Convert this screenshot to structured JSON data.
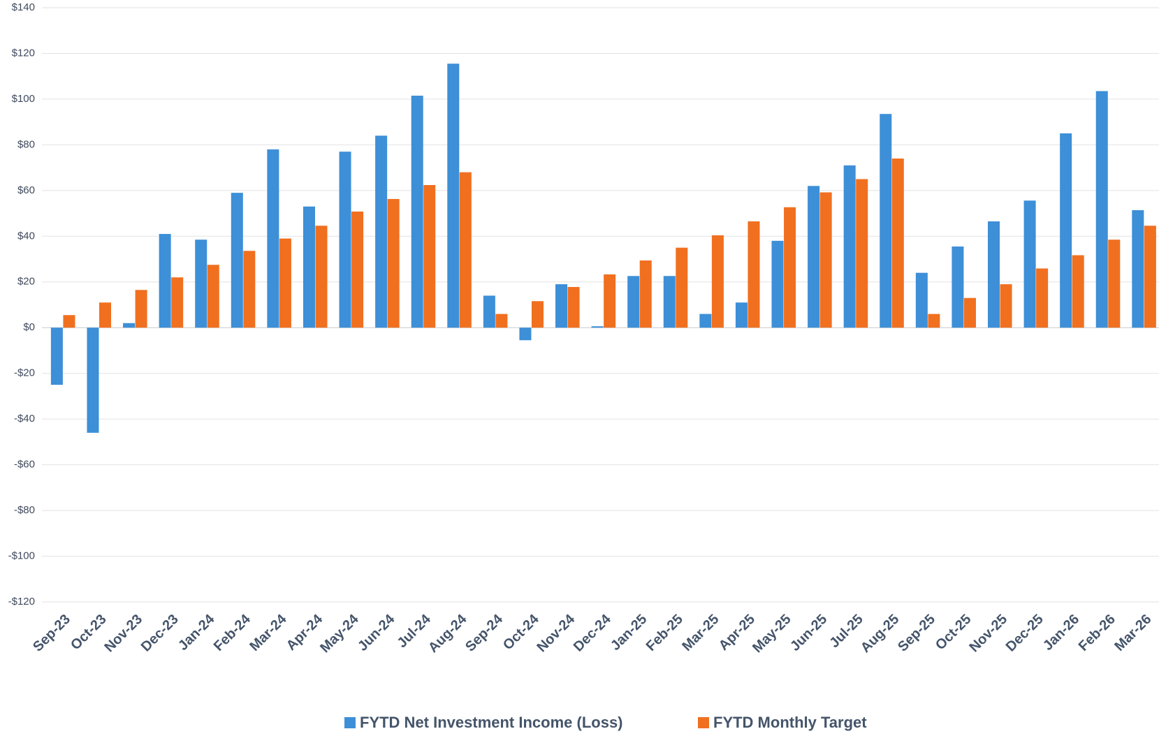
{
  "chart_data": {
    "type": "bar",
    "categories": [
      "Sep-23",
      "Oct-23",
      "Nov-23",
      "Dec-23",
      "Jan-24",
      "Feb-24",
      "Mar-24",
      "Apr-24",
      "May-24",
      "Jun-24",
      "Jul-24",
      "Aug-24",
      "Sep-24",
      "Oct-24",
      "Nov-24",
      "Dec-24",
      "Jan-25",
      "Feb-25",
      "Mar-25",
      "Apr-25",
      "May-25",
      "Jun-25",
      "Jul-25",
      "Aug-25",
      "Sep-25",
      "Oct-25",
      "Nov-25",
      "Dec-25",
      "Jan-26",
      "Feb-26",
      "Mar-26"
    ],
    "series": [
      {
        "name": "FYTD Net Investment Income (Loss)",
        "color": "#3d8fd8",
        "values": [
          -25,
          -46,
          2,
          41,
          38.5,
          59,
          78,
          53,
          77,
          84,
          101.5,
          115.5,
          14,
          -5.5,
          19,
          0.6,
          22.6,
          22.6,
          6,
          11,
          38,
          62,
          71,
          93.5,
          24,
          35.5,
          46.5,
          55.6,
          85,
          103.5,
          51.4
        ]
      },
      {
        "name": "FYTD Monthly Target",
        "color": "#f07020",
        "values": [
          5.5,
          11,
          16.5,
          22,
          27.5,
          33.6,
          39,
          44.6,
          50.8,
          56.3,
          62.4,
          68,
          6,
          11.6,
          17.8,
          23.3,
          29.4,
          35,
          40.4,
          46.5,
          52.7,
          59.2,
          65,
          74,
          6,
          13,
          19,
          25.9,
          31.7,
          38.5,
          44.6
        ]
      }
    ],
    "ylim": [
      -120,
      140
    ],
    "yticks": [
      {
        "value": -120,
        "label": "-$120"
      },
      {
        "value": -100,
        "label": "-$100"
      },
      {
        "value": -80,
        "label": "-$80"
      },
      {
        "value": -60,
        "label": "-$60"
      },
      {
        "value": -40,
        "label": "-$40"
      },
      {
        "value": -20,
        "label": "-$20"
      },
      {
        "value": 0,
        "label": "$0"
      },
      {
        "value": 20,
        "label": "$20"
      },
      {
        "value": 40,
        "label": "$40"
      },
      {
        "value": 60,
        "label": "$60"
      },
      {
        "value": 80,
        "label": "$80"
      },
      {
        "value": 100,
        "label": "$100"
      },
      {
        "value": 120,
        "label": "$120"
      },
      {
        "value": 140,
        "label": "$140"
      }
    ],
    "grid": true,
    "legend": "bottom"
  }
}
